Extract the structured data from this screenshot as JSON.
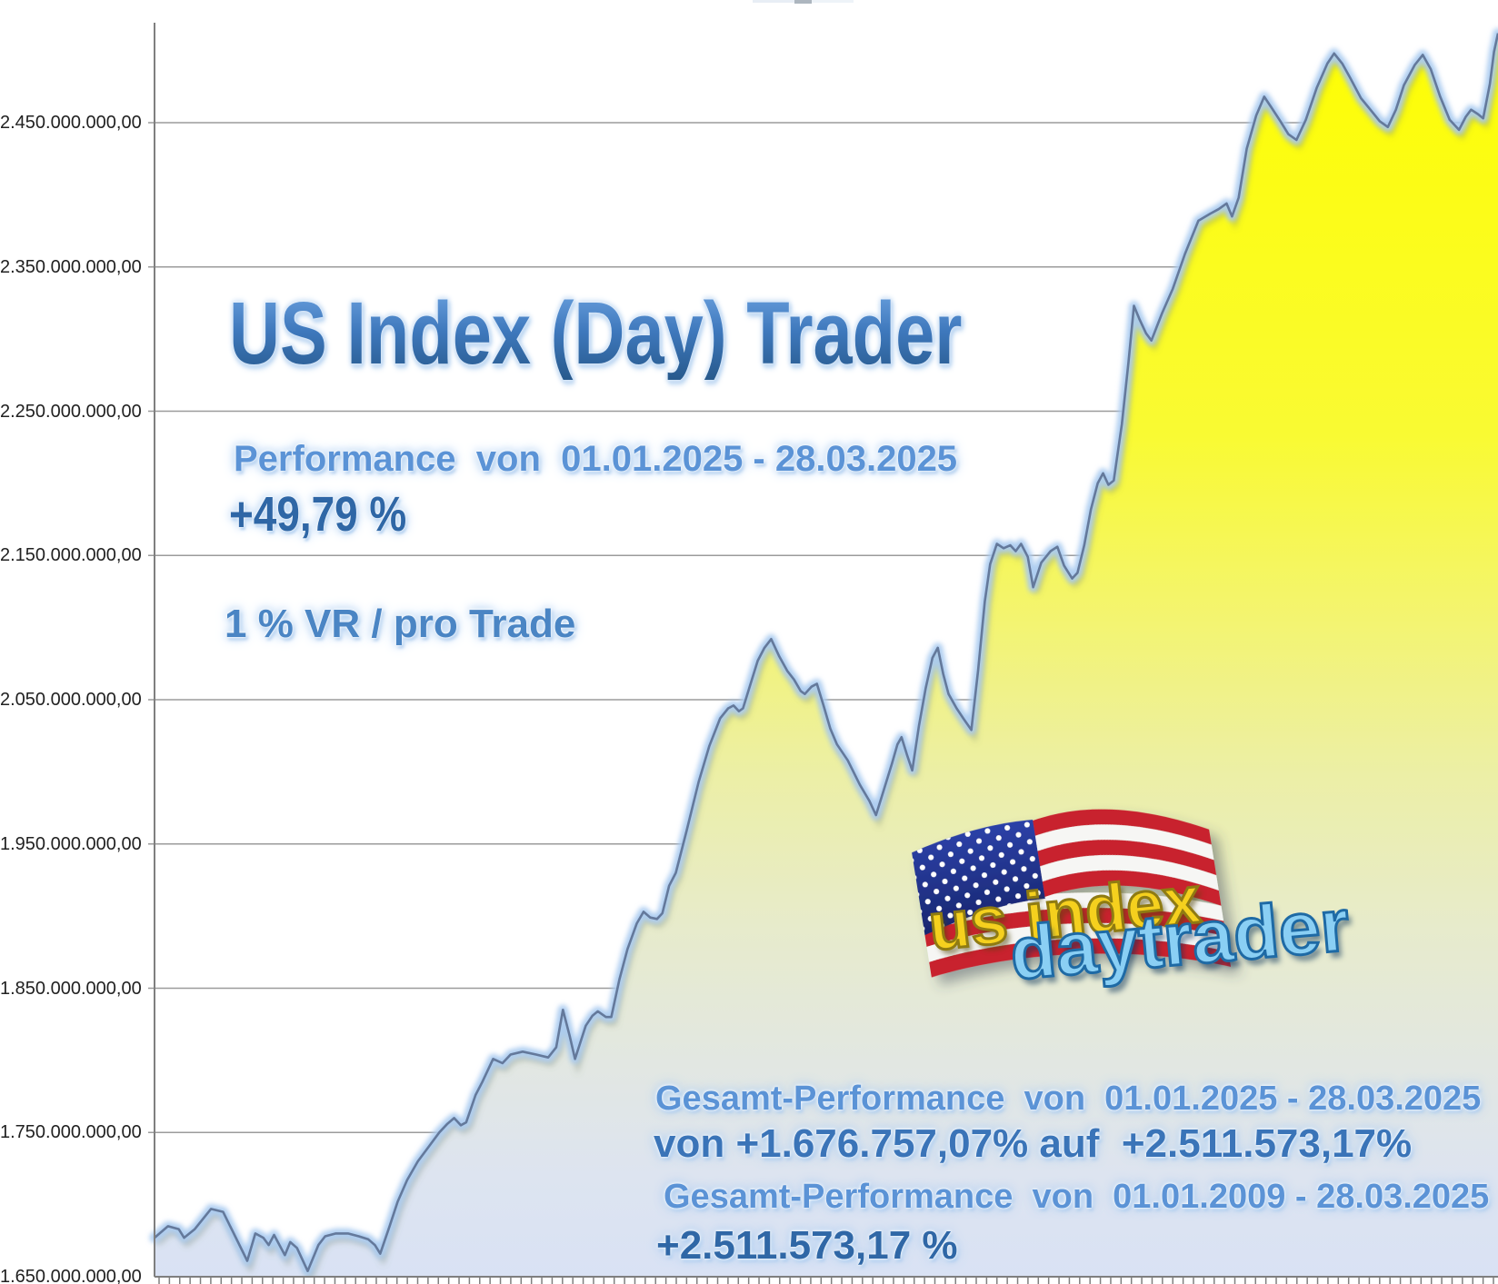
{
  "title": {
    "text": "US Index (Day) Trader"
  },
  "performance": {
    "label": "Performance  von  01.01.2025 - 28.03.2025",
    "value": "+49,79 %"
  },
  "risk_note": {
    "text": "1 % VR / pro Trade"
  },
  "summary": {
    "period_label": "Gesamt-Performance  von  01.01.2025 - 28.03.2025",
    "period_value": "von +1.676.757,07% auf  +2.511.573,17%",
    "total_label": "Gesamt-Performance  von  01.01.2009 - 28.03.2025",
    "total_value": "+2.511.573,17 %"
  },
  "logo": {
    "line1": "us index",
    "line2": "daytrader"
  },
  "colors": {
    "title_blue": "#3a74b8",
    "label_blue": "#5b93d6",
    "value_blue": "#2f67a6",
    "area_top": "#fefe00",
    "area_bottom": "#dae2f4",
    "line": "#64799b",
    "line_glow": "#abcbf0",
    "grid": "#9b9b9b",
    "axis": "#7f7f7f",
    "logo_yellow": "#f5d01e",
    "logo_blue": "#8acff4",
    "flag_red": "#c8202f",
    "flag_canton": "#22339b"
  },
  "chart_data": {
    "type": "area",
    "title": "US Index (Day) Trader",
    "x_range": [
      "01.01.2025",
      "28.03.2025"
    ],
    "x_tick_count": 130,
    "legend": false,
    "grid": true,
    "y_axis": {
      "min_bn": 1.65,
      "max_bn": 2.52,
      "tick_labels": [
        "2.450.000.000,00",
        "2.350.000.000,00",
        "2.250.000.000,00",
        "2.150.000.000,00",
        "2.050.000.000,00",
        "1.950.000.000,00",
        "1.850.000.000,00",
        "1.750.000.000,00",
        "1.650.000.000,00"
      ],
      "tick_values_bn": [
        2.45,
        2.35,
        2.25,
        2.15,
        2.05,
        1.95,
        1.85,
        1.75,
        1.65
      ]
    },
    "points": [
      [
        0.0,
        1.677
      ],
      [
        0.01,
        1.685
      ],
      [
        0.018,
        1.683
      ],
      [
        0.022,
        1.677
      ],
      [
        0.03,
        1.683
      ],
      [
        0.042,
        1.697
      ],
      [
        0.051,
        1.695
      ],
      [
        0.06,
        1.678
      ],
      [
        0.069,
        1.661
      ],
      [
        0.075,
        1.68
      ],
      [
        0.081,
        1.677
      ],
      [
        0.085,
        1.672
      ],
      [
        0.089,
        1.679
      ],
      [
        0.097,
        1.665
      ],
      [
        0.101,
        1.674
      ],
      [
        0.106,
        1.67
      ],
      [
        0.114,
        1.654
      ],
      [
        0.122,
        1.672
      ],
      [
        0.127,
        1.678
      ],
      [
        0.135,
        1.68
      ],
      [
        0.144,
        1.68
      ],
      [
        0.152,
        1.678
      ],
      [
        0.159,
        1.676
      ],
      [
        0.164,
        1.672
      ],
      [
        0.168,
        1.666
      ],
      [
        0.175,
        1.685
      ],
      [
        0.181,
        1.702
      ],
      [
        0.188,
        1.717
      ],
      [
        0.196,
        1.73
      ],
      [
        0.204,
        1.74
      ],
      [
        0.212,
        1.75
      ],
      [
        0.218,
        1.756
      ],
      [
        0.223,
        1.76
      ],
      [
        0.228,
        1.755
      ],
      [
        0.232,
        1.757
      ],
      [
        0.239,
        1.776
      ],
      [
        0.244,
        1.785
      ],
      [
        0.252,
        1.801
      ],
      [
        0.259,
        1.798
      ],
      [
        0.265,
        1.804
      ],
      [
        0.274,
        1.806
      ],
      [
        0.284,
        1.804
      ],
      [
        0.293,
        1.802
      ],
      [
        0.299,
        1.809
      ],
      [
        0.304,
        1.835
      ],
      [
        0.309,
        1.817
      ],
      [
        0.313,
        1.801
      ],
      [
        0.321,
        1.824
      ],
      [
        0.326,
        1.831
      ],
      [
        0.33,
        1.834
      ],
      [
        0.336,
        1.83
      ],
      [
        0.34,
        1.83
      ],
      [
        0.346,
        1.856
      ],
      [
        0.352,
        1.877
      ],
      [
        0.359,
        1.895
      ],
      [
        0.364,
        1.903
      ],
      [
        0.369,
        1.899
      ],
      [
        0.374,
        1.898
      ],
      [
        0.378,
        1.902
      ],
      [
        0.383,
        1.921
      ],
      [
        0.388,
        1.93
      ],
      [
        0.396,
        1.959
      ],
      [
        0.405,
        1.993
      ],
      [
        0.413,
        2.018
      ],
      [
        0.421,
        2.037
      ],
      [
        0.427,
        2.044
      ],
      [
        0.431,
        2.046
      ],
      [
        0.435,
        2.042
      ],
      [
        0.438,
        2.044
      ],
      [
        0.444,
        2.062
      ],
      [
        0.449,
        2.077
      ],
      [
        0.454,
        2.086
      ],
      [
        0.459,
        2.092
      ],
      [
        0.465,
        2.08
      ],
      [
        0.471,
        2.07
      ],
      [
        0.476,
        2.064
      ],
      [
        0.481,
        2.056
      ],
      [
        0.484,
        2.054
      ],
      [
        0.489,
        2.059
      ],
      [
        0.493,
        2.061
      ],
      [
        0.498,
        2.046
      ],
      [
        0.503,
        2.03
      ],
      [
        0.508,
        2.019
      ],
      [
        0.516,
        2.008
      ],
      [
        0.525,
        1.991
      ],
      [
        0.532,
        1.98
      ],
      [
        0.537,
        1.97
      ],
      [
        0.543,
        1.988
      ],
      [
        0.549,
        2.006
      ],
      [
        0.553,
        2.019
      ],
      [
        0.556,
        2.024
      ],
      [
        0.56,
        2.012
      ],
      [
        0.564,
        2.001
      ],
      [
        0.569,
        2.032
      ],
      [
        0.574,
        2.058
      ],
      [
        0.579,
        2.079
      ],
      [
        0.583,
        2.086
      ],
      [
        0.587,
        2.068
      ],
      [
        0.591,
        2.054
      ],
      [
        0.597,
        2.044
      ],
      [
        0.602,
        2.037
      ],
      [
        0.608,
        2.029
      ],
      [
        0.613,
        2.07
      ],
      [
        0.618,
        2.118
      ],
      [
        0.622,
        2.144
      ],
      [
        0.627,
        2.158
      ],
      [
        0.632,
        2.155
      ],
      [
        0.637,
        2.157
      ],
      [
        0.641,
        2.153
      ],
      [
        0.645,
        2.158
      ],
      [
        0.65,
        2.149
      ],
      [
        0.654,
        2.128
      ],
      [
        0.66,
        2.145
      ],
      [
        0.667,
        2.153
      ],
      [
        0.672,
        2.156
      ],
      [
        0.677,
        2.143
      ],
      [
        0.683,
        2.134
      ],
      [
        0.687,
        2.138
      ],
      [
        0.692,
        2.157
      ],
      [
        0.697,
        2.182
      ],
      [
        0.702,
        2.2
      ],
      [
        0.706,
        2.207
      ],
      [
        0.71,
        2.199
      ],
      [
        0.714,
        2.202
      ],
      [
        0.72,
        2.241
      ],
      [
        0.725,
        2.284
      ],
      [
        0.729,
        2.323
      ],
      [
        0.733,
        2.314
      ],
      [
        0.738,
        2.304
      ],
      [
        0.742,
        2.299
      ],
      [
        0.75,
        2.318
      ],
      [
        0.758,
        2.335
      ],
      [
        0.767,
        2.359
      ],
      [
        0.777,
        2.382
      ],
      [
        0.786,
        2.387
      ],
      [
        0.792,
        2.39
      ],
      [
        0.798,
        2.394
      ],
      [
        0.802,
        2.385
      ],
      [
        0.807,
        2.398
      ],
      [
        0.813,
        2.432
      ],
      [
        0.82,
        2.455
      ],
      [
        0.826,
        2.468
      ],
      [
        0.831,
        2.461
      ],
      [
        0.838,
        2.451
      ],
      [
        0.844,
        2.442
      ],
      [
        0.85,
        2.438
      ],
      [
        0.857,
        2.452
      ],
      [
        0.865,
        2.474
      ],
      [
        0.873,
        2.491
      ],
      [
        0.878,
        2.498
      ],
      [
        0.884,
        2.491
      ],
      [
        0.89,
        2.481
      ],
      [
        0.898,
        2.467
      ],
      [
        0.905,
        2.459
      ],
      [
        0.912,
        2.451
      ],
      [
        0.918,
        2.447
      ],
      [
        0.924,
        2.459
      ],
      [
        0.93,
        2.476
      ],
      [
        0.938,
        2.49
      ],
      [
        0.944,
        2.497
      ],
      [
        0.95,
        2.487
      ],
      [
        0.957,
        2.468
      ],
      [
        0.964,
        2.452
      ],
      [
        0.971,
        2.445
      ],
      [
        0.976,
        2.454
      ],
      [
        0.98,
        2.459
      ],
      [
        0.985,
        2.456
      ],
      [
        0.989,
        2.453
      ],
      [
        0.994,
        2.477
      ],
      [
        0.997,
        2.499
      ],
      [
        1.0,
        2.512
      ]
    ]
  }
}
